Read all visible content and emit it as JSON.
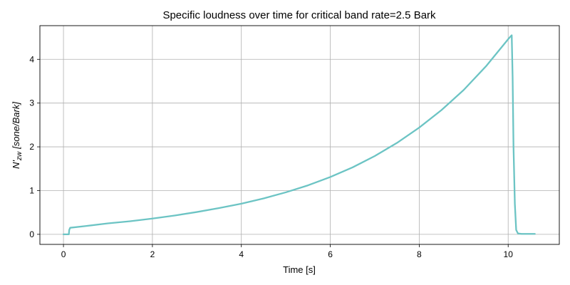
{
  "chart_data": {
    "type": "line",
    "title": "Specific loudness over time for critical band rate=2.5 Bark",
    "xlabel": "Time [s]",
    "ylabel": "N'_zw [sone/Bark]",
    "ylabel_parts": {
      "main": "N'",
      "sub": "zw",
      "unit": "[sone/Bark]"
    },
    "xlim": [
      -0.53,
      11.15
    ],
    "ylim": [
      -0.23,
      4.77
    ],
    "xticks": [
      0,
      2,
      4,
      6,
      8,
      10
    ],
    "xtick_labels": [
      "0",
      "2",
      "4",
      "6",
      "8",
      "10"
    ],
    "yticks": [
      0,
      1,
      2,
      3,
      4
    ],
    "ytick_labels": [
      "0",
      "1",
      "2",
      "3",
      "4"
    ],
    "grid": true,
    "legend": "none",
    "series": [
      {
        "color": "#6cc4c4",
        "x": [
          0.0,
          0.12,
          0.13,
          0.15,
          0.5,
          1.0,
          1.5,
          2.0,
          2.5,
          3.0,
          3.5,
          4.0,
          4.5,
          5.0,
          5.5,
          6.0,
          6.5,
          7.0,
          7.5,
          8.0,
          8.5,
          9.0,
          9.5,
          10.0,
          10.05,
          10.08,
          10.1,
          10.12,
          10.15,
          10.18,
          10.22,
          10.3,
          10.6
        ],
        "y": [
          0.0,
          0.0,
          0.1,
          0.15,
          0.19,
          0.25,
          0.3,
          0.36,
          0.43,
          0.51,
          0.6,
          0.7,
          0.82,
          0.96,
          1.12,
          1.31,
          1.53,
          1.79,
          2.09,
          2.44,
          2.84,
          3.3,
          3.84,
          4.46,
          4.52,
          4.55,
          3.6,
          2.0,
          0.7,
          0.1,
          0.02,
          0.01,
          0.01
        ]
      }
    ]
  }
}
